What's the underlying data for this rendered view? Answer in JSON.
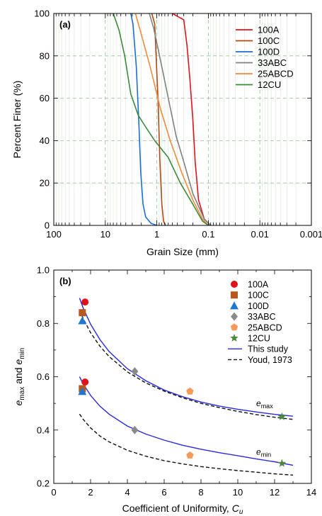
{
  "chart_data": [
    {
      "type": "line",
      "panel_label": "(a)",
      "xlabel": "Grain Size (mm)",
      "ylabel": "Percent Finer (%)",
      "x_scale": "log-reversed",
      "xlim": [
        100,
        0.001
      ],
      "ylim": [
        0,
        100
      ],
      "x_ticks": [
        100,
        10,
        1,
        0.1,
        0.01,
        0.001
      ],
      "x_tick_labels": [
        "100",
        "10",
        "1",
        "0.1",
        "0.01",
        "0.001"
      ],
      "y_ticks": [
        0,
        20,
        40,
        60,
        80,
        100
      ],
      "y_tick_labels": [
        "0",
        "20",
        "40",
        "60",
        "80",
        "100"
      ],
      "grid": true,
      "legend_position": "top-right",
      "series": [
        {
          "name": "100A",
          "color": "#e0121c",
          "points": [
            [
              0.5,
              100
            ],
            [
              0.3,
              97
            ],
            [
              0.26,
              85
            ],
            [
              0.23,
              70
            ],
            [
              0.2,
              50
            ],
            [
              0.18,
              30
            ],
            [
              0.155,
              12
            ],
            [
              0.12,
              3
            ],
            [
              0.09,
              0
            ]
          ]
        },
        {
          "name": "100C",
          "color": "#b04a14",
          "points": [
            [
              1.25,
              100
            ],
            [
              1.1,
              95
            ],
            [
              0.95,
              60
            ],
            [
              0.87,
              30
            ],
            [
              0.8,
              10
            ],
            [
              0.74,
              2
            ],
            [
              0.68,
              0
            ]
          ]
        },
        {
          "name": "100D",
          "color": "#1a6fd0",
          "points": [
            [
              3.2,
              100
            ],
            [
              2.9,
              95
            ],
            [
              2.5,
              75
            ],
            [
              2.25,
              50
            ],
            [
              2.05,
              25
            ],
            [
              1.85,
              10
            ],
            [
              1.65,
              4
            ],
            [
              1.3,
              1
            ],
            [
              1.0,
              0
            ]
          ]
        },
        {
          "name": "33ABC",
          "color": "#808080",
          "points": [
            [
              1.4,
              100
            ],
            [
              1.15,
              93
            ],
            [
              0.85,
              78
            ],
            [
              0.6,
              60
            ],
            [
              0.42,
              42
            ],
            [
              0.3,
              30
            ],
            [
              0.2,
              15
            ],
            [
              0.12,
              3
            ],
            [
              0.09,
              0
            ]
          ]
        },
        {
          "name": "25ABCD",
          "color": "#f08a3c",
          "points": [
            [
              2.6,
              100
            ],
            [
              2.1,
              92
            ],
            [
              1.35,
              75
            ],
            [
              0.85,
              55
            ],
            [
              0.55,
              40
            ],
            [
              0.33,
              25
            ],
            [
              0.2,
              12
            ],
            [
              0.13,
              3
            ],
            [
              0.1,
              0
            ]
          ]
        },
        {
          "name": "12CU",
          "color": "#3a8a3a",
          "points": [
            [
              7,
              100
            ],
            [
              5.4,
              92
            ],
            [
              4.2,
              80
            ],
            [
              3.2,
              62
            ],
            [
              2.3,
              52
            ],
            [
              1.6,
              46
            ],
            [
              1.1,
              40
            ],
            [
              0.6,
              32
            ],
            [
              0.35,
              20
            ],
            [
              0.2,
              10
            ],
            [
              0.13,
              2
            ],
            [
              0.1,
              0
            ]
          ]
        }
      ]
    },
    {
      "type": "scatter",
      "panel_label": "(b)",
      "xlabel": "Coefficient of Uniformity, ",
      "xlabel_var": "C",
      "xlabel_sub": "u",
      "ylabel_e1": "e",
      "ylabel_sub1": "max",
      "ylabel_mid": " and ",
      "ylabel_e2": "e",
      "ylabel_sub2": "min",
      "xlim": [
        0,
        14
      ],
      "ylim": [
        0.2,
        1.0
      ],
      "x_ticks": [
        0,
        2,
        4,
        6,
        8,
        10,
        12,
        14
      ],
      "x_tick_labels": [
        "0",
        "2",
        "4",
        "6",
        "8",
        "10",
        "12",
        "14"
      ],
      "y_ticks": [
        0.2,
        0.4,
        0.6,
        0.8,
        1.0
      ],
      "y_tick_labels": [
        "0.2",
        "0.4",
        "0.6",
        "0.8",
        "1.0"
      ],
      "grid": false,
      "legend_position": "top-right",
      "annotations": [
        {
          "base": "e",
          "sub": "max",
          "x": 11.0,
          "y": 0.49
        },
        {
          "base": "e",
          "sub": "min",
          "x": 11.0,
          "y": 0.308
        }
      ],
      "series": [
        {
          "name": "100A",
          "marker": "circle",
          "color": "#e0121c",
          "points": [
            [
              1.7,
              0.88
            ],
            [
              1.7,
              0.58
            ]
          ]
        },
        {
          "name": "100C",
          "marker": "square",
          "color": "#b8581a",
          "points": [
            [
              1.55,
              0.84
            ],
            [
              1.55,
              0.555
            ]
          ]
        },
        {
          "name": "100D",
          "marker": "triangle",
          "color": "#1f77d0",
          "points": [
            [
              1.55,
              0.81
            ],
            [
              1.55,
              0.545
            ]
          ]
        },
        {
          "name": "33ABC",
          "marker": "diamond",
          "color": "#8a8a8a",
          "points": [
            [
              4.4,
              0.62
            ],
            [
              4.4,
              0.4
            ]
          ]
        },
        {
          "name": "25ABCD",
          "marker": "pentagon",
          "color": "#f59a5a",
          "points": [
            [
              7.4,
              0.545
            ],
            [
              7.4,
              0.305
            ]
          ]
        },
        {
          "name": "12CU",
          "marker": "star",
          "color": "#4a8a3a",
          "points": [
            [
              12.4,
              0.45
            ],
            [
              12.4,
              0.275
            ]
          ]
        },
        {
          "name": "This study",
          "style": "solid",
          "color": "#2a2ae0",
          "curves": [
            [
              [
                1.4,
                0.895
              ],
              [
                1.6,
                0.857
              ],
              [
                2.0,
                0.797
              ],
              [
                2.5,
                0.74
              ],
              [
                3,
                0.695
              ],
              [
                4,
                0.63
              ],
              [
                5,
                0.585
              ],
              [
                6,
                0.55
              ],
              [
                7,
                0.525
              ],
              [
                8,
                0.505
              ],
              [
                9,
                0.49
              ],
              [
                10,
                0.478
              ],
              [
                11,
                0.468
              ],
              [
                12,
                0.459
              ],
              [
                13,
                0.452
              ]
            ],
            [
              [
                1.4,
                0.6
              ],
              [
                1.6,
                0.573
              ],
              [
                2.0,
                0.53
              ],
              [
                2.5,
                0.49
              ],
              [
                3,
                0.46
              ],
              [
                4,
                0.415
              ],
              [
                5,
                0.385
              ],
              [
                6,
                0.362
              ],
              [
                7,
                0.343
              ],
              [
                8,
                0.328
              ],
              [
                9,
                0.315
              ],
              [
                10,
                0.304
              ],
              [
                11,
                0.292
              ],
              [
                12,
                0.281
              ],
              [
                13,
                0.268
              ]
            ]
          ]
        },
        {
          "name": "Youd, 1973",
          "style": "dashed",
          "color": "#111111",
          "curves": [
            [
              [
                1.4,
                0.85
              ],
              [
                1.6,
                0.818
              ],
              [
                2.0,
                0.765
              ],
              [
                2.5,
                0.715
              ],
              [
                3,
                0.676
              ],
              [
                4,
                0.618
              ],
              [
                5,
                0.577
              ],
              [
                6,
                0.546
              ],
              [
                7,
                0.521
              ],
              [
                8,
                0.5
              ],
              [
                9,
                0.484
              ],
              [
                10,
                0.47
              ],
              [
                11,
                0.458
              ],
              [
                12,
                0.448
              ],
              [
                13,
                0.44
              ]
            ],
            [
              [
                1.4,
                0.46
              ],
              [
                1.6,
                0.44
              ],
              [
                2.0,
                0.408
              ],
              [
                2.5,
                0.378
              ],
              [
                3,
                0.356
              ],
              [
                4,
                0.324
              ],
              [
                5,
                0.302
              ],
              [
                6,
                0.285
              ],
              [
                7,
                0.273
              ],
              [
                8,
                0.263
              ],
              [
                9,
                0.255
              ],
              [
                10,
                0.248
              ],
              [
                11,
                0.242
              ],
              [
                12,
                0.236
              ],
              [
                13,
                0.231
              ]
            ]
          ]
        }
      ]
    }
  ]
}
